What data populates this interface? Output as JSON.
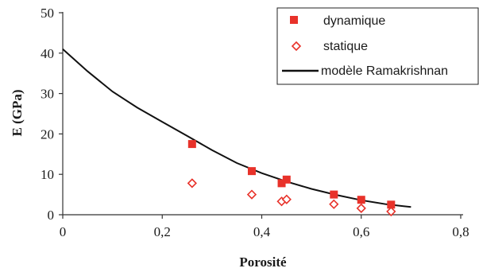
{
  "chart_data": {
    "type": "scatter",
    "xlabel": "Porosité",
    "ylabel": "E (GPa)",
    "xlim": [
      0,
      0.8
    ],
    "ylim": [
      0,
      50
    ],
    "xticks": [
      "0",
      "0,2",
      "0,4",
      "0,6",
      "0,8"
    ],
    "yticks": [
      "0",
      "10",
      "20",
      "30",
      "40",
      "50"
    ],
    "grid": false,
    "legend_position": "top-right",
    "colors": {
      "dynamique": "#e8322a",
      "statique": "#e8322a",
      "model": "#111111"
    },
    "series": [
      {
        "name": "dynamique",
        "marker": "filled-square",
        "points": [
          [
            0.26,
            17.5
          ],
          [
            0.38,
            10.8
          ],
          [
            0.44,
            7.8
          ],
          [
            0.45,
            8.7
          ],
          [
            0.545,
            5.0
          ],
          [
            0.6,
            3.7
          ],
          [
            0.66,
            2.5
          ]
        ]
      },
      {
        "name": "statique",
        "marker": "open-diamond",
        "points": [
          [
            0.26,
            7.8
          ],
          [
            0.38,
            5.0
          ],
          [
            0.44,
            3.3
          ],
          [
            0.45,
            3.8
          ],
          [
            0.545,
            2.6
          ],
          [
            0.6,
            1.6
          ],
          [
            0.66,
            0.8
          ]
        ]
      },
      {
        "name": "modèle Ramakrishnan",
        "marker": "line",
        "points": [
          [
            0.0,
            41.0
          ],
          [
            0.05,
            35.5
          ],
          [
            0.1,
            30.5
          ],
          [
            0.15,
            26.5
          ],
          [
            0.2,
            23.0
          ],
          [
            0.25,
            19.5
          ],
          [
            0.3,
            16.0
          ],
          [
            0.35,
            12.8
          ],
          [
            0.4,
            10.3
          ],
          [
            0.45,
            8.2
          ],
          [
            0.5,
            6.4
          ],
          [
            0.55,
            4.9
          ],
          [
            0.6,
            3.6
          ],
          [
            0.65,
            2.6
          ],
          [
            0.7,
            1.9
          ]
        ]
      }
    ]
  }
}
